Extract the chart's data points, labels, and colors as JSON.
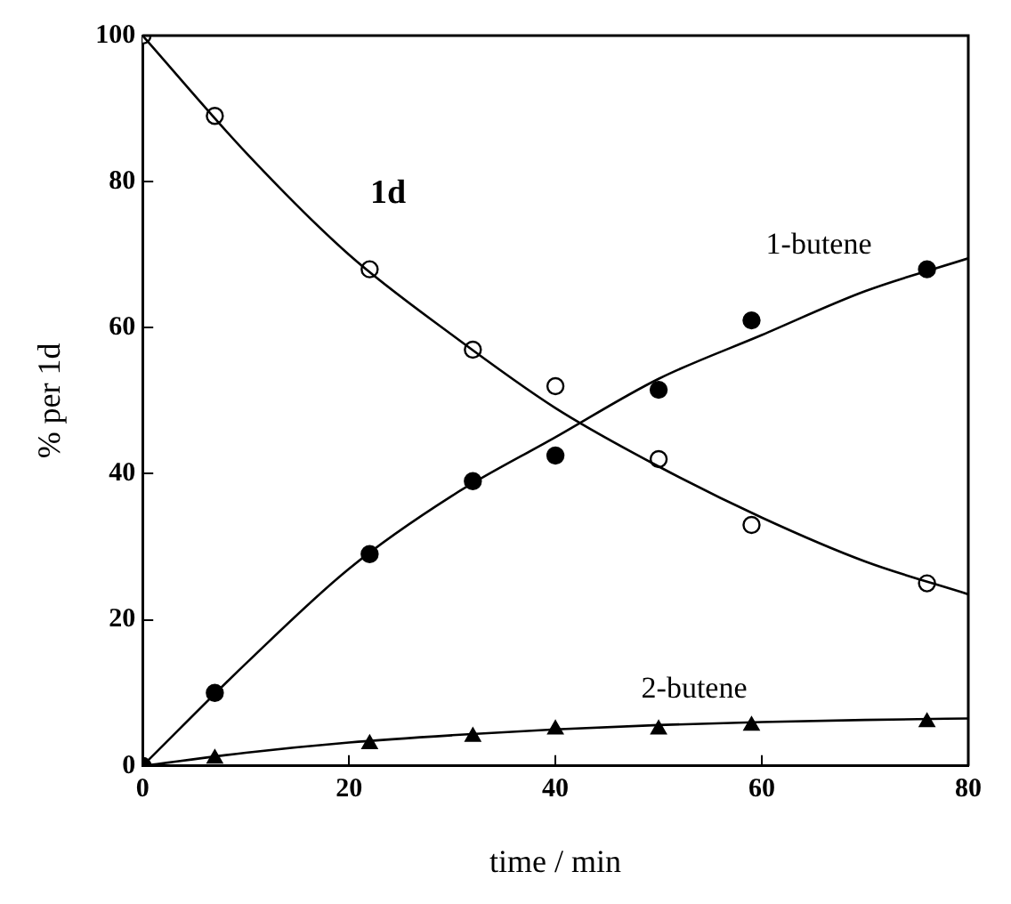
{
  "chart_data": {
    "type": "scatter",
    "xlabel": "time / min",
    "ylabel": "% per 1d",
    "xlim": [
      0,
      80
    ],
    "ylim": [
      0,
      100
    ],
    "xticks": [
      0,
      20,
      40,
      60,
      80
    ],
    "yticks": [
      0,
      20,
      40,
      60,
      80,
      100
    ],
    "grid": false,
    "legend": false,
    "series": [
      {
        "type": "scatter",
        "color": "#ffffff",
        "marker": "circle",
        "x": [
          0,
          7,
          22,
          32,
          40,
          50,
          59,
          76
        ],
        "values": [
          100,
          89,
          68,
          57,
          52,
          42,
          33,
          25
        ]
      },
      {
        "type": "scatter",
        "color": "#000000",
        "marker": "circle",
        "x": [
          0,
          7,
          22,
          32,
          40,
          50,
          59,
          76
        ],
        "values": [
          0,
          10,
          29,
          39,
          42.5,
          51.5,
          61,
          68
        ]
      },
      {
        "type": "scatter",
        "color": "#000000",
        "marker": "triangle",
        "x": [
          7,
          22,
          32,
          40,
          50,
          59,
          76
        ],
        "values": [
          1,
          3,
          4,
          5,
          5,
          5.5,
          6
        ]
      },
      {
        "type": "line",
        "name": "1d",
        "color": "#000000",
        "marker": "none",
        "x": [
          0,
          10,
          20,
          30,
          40,
          50,
          60,
          70,
          80
        ],
        "values": [
          100,
          84,
          70,
          59,
          49,
          41,
          34,
          28,
          23.5
        ]
      },
      {
        "type": "line",
        "name": "1-butene",
        "color": "#000000",
        "marker": "none",
        "x": [
          0,
          10,
          20,
          30,
          40,
          50,
          60,
          70,
          80
        ],
        "values": [
          0,
          14,
          27,
          37,
          45,
          53,
          59,
          65,
          69.5
        ]
      },
      {
        "type": "line",
        "name": "2-butene",
        "color": "#000000",
        "marker": "none",
        "x": [
          0,
          10,
          20,
          30,
          40,
          50,
          60,
          70,
          80
        ],
        "values": [
          0,
          1.8,
          3.2,
          4.2,
          5,
          5.6,
          6,
          6.3,
          6.5
        ]
      }
    ]
  }
}
